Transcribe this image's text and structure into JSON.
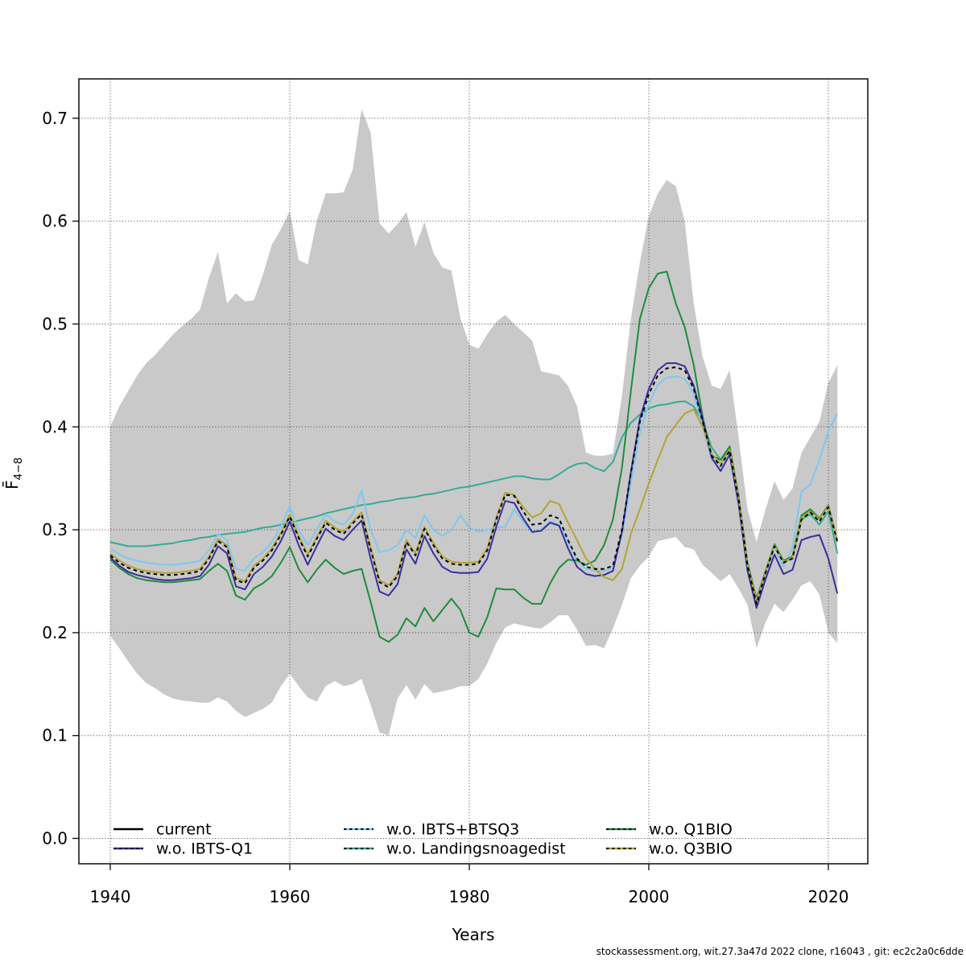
{
  "figure": {
    "xlabel": "Years",
    "ylabel_base": "F̄",
    "ylabel_sub": "4−8",
    "footer": "stockassessment.org, wit.27.3a47d 2022 clone, r16043 , git: ec2c2a0c6dde"
  },
  "legend": {
    "columns": [
      [
        {
          "key": "current",
          "label": "current"
        },
        {
          "key": "ibts_q1",
          "label": "w.o. IBTS-Q1"
        }
      ],
      [
        {
          "key": "ibts_btsq3",
          "label": "w.o. IBTS+BTSQ3"
        },
        {
          "key": "landings",
          "label": "w.o. Landingsnoagedist"
        }
      ],
      [
        {
          "key": "q1bio",
          "label": "w.o. Q1BIO"
        },
        {
          "key": "q3bio",
          "label": "w.o. Q3BIO"
        }
      ]
    ]
  },
  "chart_data": {
    "type": "line",
    "title": "",
    "xlabel": "Years",
    "ylabel": "F̄4−8",
    "grid": true,
    "legend_position": "bottom-inside",
    "xlim": [
      1936.3,
      2024.4
    ],
    "ylim": [
      -0.031,
      0.738
    ],
    "xticks": [
      1940,
      1960,
      1980,
      2000,
      2020
    ],
    "yticks": [
      {
        "v": 0.0,
        "label": "0.0"
      },
      {
        "v": 0.1,
        "label": "0.1"
      },
      {
        "v": 0.2,
        "label": "0.2"
      },
      {
        "v": 0.3,
        "label": "0.3"
      },
      {
        "v": 0.4,
        "label": "0.4"
      },
      {
        "v": 0.5,
        "label": "0.5"
      },
      {
        "v": 0.6,
        "label": "0.6"
      },
      {
        "v": 0.7,
        "label": "0.7"
      }
    ],
    "x": [
      1940,
      1941,
      1942,
      1943,
      1944,
      1945,
      1946,
      1947,
      1948,
      1949,
      1950,
      1951,
      1952,
      1953,
      1954,
      1955,
      1956,
      1957,
      1958,
      1959,
      1960,
      1961,
      1962,
      1963,
      1964,
      1965,
      1966,
      1967,
      1968,
      1969,
      1970,
      1971,
      1972,
      1973,
      1974,
      1975,
      1976,
      1977,
      1978,
      1979,
      1980,
      1981,
      1982,
      1983,
      1984,
      1985,
      1986,
      1987,
      1988,
      1989,
      1990,
      1991,
      1992,
      1993,
      1994,
      1995,
      1996,
      1997,
      1998,
      1999,
      2000,
      2001,
      2002,
      2003,
      2004,
      2005,
      2006,
      2007,
      2008,
      2009,
      2010,
      2011,
      2012,
      2013,
      2014,
      2015,
      2016,
      2017,
      2018,
      2019,
      2020,
      2021
    ],
    "band": {
      "label": "pointwise confidence band (current)",
      "color": "#c9c9c9",
      "upper": [
        0.4,
        0.42,
        0.435,
        0.45,
        0.462,
        0.47,
        0.48,
        0.49,
        0.498,
        0.505,
        0.514,
        0.545,
        0.57,
        0.52,
        0.53,
        0.522,
        0.523,
        0.548,
        0.577,
        0.592,
        0.61,
        0.562,
        0.558,
        0.6,
        0.627,
        0.627,
        0.628,
        0.65,
        0.709,
        0.686,
        0.598,
        0.588,
        0.597,
        0.609,
        0.575,
        0.599,
        0.569,
        0.555,
        0.552,
        0.506,
        0.48,
        0.476,
        0.49,
        0.502,
        0.509,
        0.5,
        0.492,
        0.484,
        0.454,
        0.452,
        0.45,
        0.44,
        0.42,
        0.375,
        0.372,
        0.372,
        0.374,
        0.43,
        0.505,
        0.56,
        0.605,
        0.627,
        0.64,
        0.634,
        0.6,
        0.52,
        0.468,
        0.44,
        0.437,
        0.455,
        0.39,
        0.32,
        0.288,
        0.32,
        0.347,
        0.329,
        0.34,
        0.375,
        0.39,
        0.405,
        0.443,
        0.46
      ],
      "lower": [
        0.197,
        0.185,
        0.172,
        0.16,
        0.151,
        0.146,
        0.14,
        0.136,
        0.134,
        0.133,
        0.132,
        0.132,
        0.137,
        0.133,
        0.124,
        0.118,
        0.122,
        0.126,
        0.132,
        0.148,
        0.16,
        0.148,
        0.137,
        0.133,
        0.148,
        0.153,
        0.148,
        0.15,
        0.155,
        0.13,
        0.103,
        0.1,
        0.136,
        0.149,
        0.135,
        0.15,
        0.141,
        0.143,
        0.145,
        0.148,
        0.148,
        0.155,
        0.17,
        0.19,
        0.205,
        0.209,
        0.207,
        0.205,
        0.204,
        0.21,
        0.217,
        0.217,
        0.203,
        0.187,
        0.188,
        0.185,
        0.204,
        0.227,
        0.253,
        0.265,
        0.274,
        0.289,
        0.291,
        0.293,
        0.283,
        0.281,
        0.266,
        0.258,
        0.25,
        0.257,
        0.243,
        0.227,
        0.185,
        0.21,
        0.228,
        0.22,
        0.232,
        0.246,
        0.25,
        0.237,
        0.2,
        0.19
      ]
    },
    "series": [
      {
        "key": "landings",
        "name": "w.o. Landingsnoagedist",
        "color": "#35ab96",
        "style": "solid",
        "values": [
          0.288,
          0.286,
          0.284,
          0.284,
          0.284,
          0.285,
          0.286,
          0.287,
          0.289,
          0.29,
          0.292,
          0.293,
          0.295,
          0.296,
          0.297,
          0.298,
          0.3,
          0.302,
          0.303,
          0.305,
          0.307,
          0.309,
          0.311,
          0.313,
          0.316,
          0.318,
          0.32,
          0.322,
          0.324,
          0.325,
          0.327,
          0.328,
          0.33,
          0.331,
          0.332,
          0.334,
          0.335,
          0.337,
          0.339,
          0.341,
          0.342,
          0.344,
          0.346,
          0.348,
          0.35,
          0.352,
          0.352,
          0.35,
          0.349,
          0.349,
          0.354,
          0.36,
          0.364,
          0.365,
          0.36,
          0.357,
          0.366,
          0.39,
          0.404,
          0.412,
          0.418,
          0.421,
          0.422,
          0.424,
          0.425,
          0.42,
          0.405,
          0.38,
          0.368,
          0.377,
          0.33,
          0.266,
          0.232,
          0.259,
          0.284,
          0.269,
          0.272,
          0.31,
          0.315,
          0.305,
          0.318,
          0.277
        ]
      },
      {
        "key": "ibts_btsq3",
        "name": "w.o. IBTS+BTSQ3",
        "color": "#7ec8ee",
        "style": "solid",
        "values": [
          0.282,
          0.276,
          0.272,
          0.27,
          0.268,
          0.267,
          0.266,
          0.266,
          0.267,
          0.268,
          0.27,
          0.28,
          0.296,
          0.29,
          0.262,
          0.26,
          0.272,
          0.278,
          0.288,
          0.303,
          0.323,
          0.3,
          0.285,
          0.3,
          0.315,
          0.308,
          0.305,
          0.315,
          0.338,
          0.3,
          0.278,
          0.28,
          0.285,
          0.3,
          0.292,
          0.314,
          0.3,
          0.294,
          0.3,
          0.314,
          0.302,
          0.298,
          0.3,
          0.302,
          0.303,
          0.32,
          0.308,
          0.297,
          0.3,
          0.308,
          0.305,
          0.288,
          0.27,
          0.262,
          0.26,
          0.26,
          0.263,
          0.295,
          0.345,
          0.395,
          0.422,
          0.441,
          0.448,
          0.449,
          0.447,
          0.432,
          0.4,
          0.368,
          0.358,
          0.374,
          0.327,
          0.262,
          0.226,
          0.256,
          0.283,
          0.264,
          0.283,
          0.337,
          0.344,
          0.368,
          0.396,
          0.413
        ]
      },
      {
        "key": "q1bio",
        "name": "w.o. Q1BIO",
        "color": "#1e8c3c",
        "style": "solid",
        "values": [
          0.271,
          0.263,
          0.257,
          0.253,
          0.251,
          0.25,
          0.249,
          0.249,
          0.25,
          0.251,
          0.252,
          0.26,
          0.267,
          0.26,
          0.236,
          0.232,
          0.243,
          0.248,
          0.255,
          0.268,
          0.283,
          0.262,
          0.249,
          0.261,
          0.271,
          0.263,
          0.257,
          0.26,
          0.262,
          0.23,
          0.196,
          0.191,
          0.198,
          0.214,
          0.206,
          0.224,
          0.211,
          0.222,
          0.233,
          0.222,
          0.2,
          0.196,
          0.215,
          0.243,
          0.242,
          0.242,
          0.234,
          0.228,
          0.228,
          0.248,
          0.263,
          0.271,
          0.27,
          0.266,
          0.27,
          0.285,
          0.31,
          0.36,
          0.435,
          0.505,
          0.535,
          0.549,
          0.551,
          0.52,
          0.497,
          0.46,
          0.41,
          0.372,
          0.368,
          0.381,
          0.333,
          0.268,
          0.233,
          0.26,
          0.286,
          0.27,
          0.274,
          0.314,
          0.32,
          0.311,
          0.324,
          0.289
        ]
      },
      {
        "key": "ibts_q1",
        "name": "w.o. IBTS-Q1",
        "color": "#3a2e9e",
        "style": "solid",
        "values": [
          0.273,
          0.265,
          0.259,
          0.256,
          0.254,
          0.252,
          0.251,
          0.251,
          0.252,
          0.253,
          0.255,
          0.266,
          0.284,
          0.277,
          0.245,
          0.242,
          0.257,
          0.264,
          0.274,
          0.289,
          0.308,
          0.285,
          0.266,
          0.284,
          0.301,
          0.294,
          0.29,
          0.3,
          0.309,
          0.272,
          0.24,
          0.236,
          0.247,
          0.281,
          0.267,
          0.294,
          0.277,
          0.264,
          0.259,
          0.258,
          0.258,
          0.259,
          0.272,
          0.303,
          0.328,
          0.326,
          0.311,
          0.298,
          0.299,
          0.307,
          0.304,
          0.282,
          0.264,
          0.257,
          0.255,
          0.256,
          0.26,
          0.298,
          0.356,
          0.408,
          0.437,
          0.455,
          0.462,
          0.462,
          0.459,
          0.44,
          0.407,
          0.37,
          0.357,
          0.373,
          0.325,
          0.26,
          0.224,
          0.252,
          0.276,
          0.257,
          0.261,
          0.29,
          0.293,
          0.295,
          0.272,
          0.238
        ]
      },
      {
        "key": "q3bio",
        "name": "w.o. Q3BIO",
        "color": "#b3a432",
        "style": "solid",
        "values": [
          0.277,
          0.27,
          0.265,
          0.262,
          0.26,
          0.259,
          0.258,
          0.258,
          0.259,
          0.26,
          0.262,
          0.274,
          0.291,
          0.285,
          0.253,
          0.25,
          0.265,
          0.272,
          0.282,
          0.297,
          0.315,
          0.294,
          0.276,
          0.293,
          0.309,
          0.302,
          0.298,
          0.308,
          0.317,
          0.283,
          0.251,
          0.246,
          0.257,
          0.29,
          0.277,
          0.303,
          0.287,
          0.274,
          0.269,
          0.268,
          0.268,
          0.269,
          0.282,
          0.312,
          0.336,
          0.334,
          0.322,
          0.312,
          0.316,
          0.328,
          0.325,
          0.307,
          0.29,
          0.272,
          0.262,
          0.254,
          0.251,
          0.262,
          0.296,
          0.32,
          0.345,
          0.368,
          0.39,
          0.402,
          0.413,
          0.417,
          0.4,
          0.374,
          0.364,
          0.378,
          0.331,
          0.266,
          0.231,
          0.259,
          0.285,
          0.269,
          0.273,
          0.312,
          0.318,
          0.31,
          0.323,
          0.29
        ]
      },
      {
        "key": "current",
        "name": "current",
        "color": "#000000",
        "style": "dashed-overlay",
        "values": [
          0.275,
          0.268,
          0.263,
          0.26,
          0.258,
          0.257,
          0.256,
          0.256,
          0.257,
          0.258,
          0.26,
          0.272,
          0.289,
          0.283,
          0.251,
          0.248,
          0.263,
          0.27,
          0.28,
          0.295,
          0.313,
          0.292,
          0.274,
          0.291,
          0.307,
          0.3,
          0.296,
          0.306,
          0.315,
          0.281,
          0.249,
          0.244,
          0.255,
          0.288,
          0.275,
          0.301,
          0.285,
          0.272,
          0.267,
          0.266,
          0.266,
          0.267,
          0.28,
          0.31,
          0.334,
          0.333,
          0.318,
          0.305,
          0.306,
          0.314,
          0.311,
          0.29,
          0.272,
          0.264,
          0.262,
          0.262,
          0.265,
          0.3,
          0.355,
          0.405,
          0.432,
          0.45,
          0.457,
          0.458,
          0.455,
          0.437,
          0.405,
          0.372,
          0.362,
          0.377,
          0.33,
          0.265,
          0.228,
          0.258,
          0.284,
          0.268,
          0.272,
          0.31,
          0.317,
          0.308,
          0.322,
          0.288
        ]
      }
    ]
  },
  "colors": {
    "grid": "#3f3f3f",
    "axis_box": "#1a1a1a",
    "band": "#c9c9c9",
    "background": "#ffffff"
  }
}
